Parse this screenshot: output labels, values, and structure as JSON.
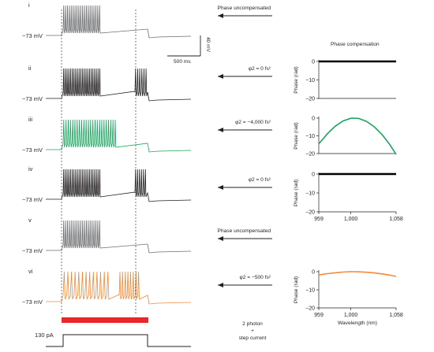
{
  "figure": {
    "title": "Phase compensation",
    "scale_bar_voltage": "40 mV",
    "scale_bar_time": "500 ms",
    "stimulus_label": "130 pA",
    "stimulus_legend_line1": "2 photon",
    "stimulus_legend_line2": "+",
    "stimulus_legend_line3": "step current"
  },
  "rows": [
    {
      "roman": "i",
      "vm": "−73 mV",
      "annotation": "Phase uncompensated",
      "color": "#6d6e71",
      "spikes1": 20,
      "spikes2": 0
    },
    {
      "roman": "ii",
      "vm": "−73 mV",
      "annotation": "φ2 = 0 fs²",
      "color": "#231f20",
      "spikes1": 22,
      "spikes2": 6
    },
    {
      "roman": "iii",
      "vm": "−73 mV",
      "annotation": "φ2 = −4,000 fs²",
      "color": "#19a55f",
      "spikes1": 24,
      "spikes2": 0
    },
    {
      "roman": "iv",
      "vm": "−73 mV",
      "annotation": "φ2 = 0 fs²",
      "color": "#231f20",
      "spikes1": 22,
      "spikes2": 6
    },
    {
      "roman": "v",
      "vm": "−73 mV",
      "annotation": "Phase uncompensated",
      "color": "#6d6e71",
      "spikes1": 20,
      "spikes2": 0
    },
    {
      "roman": "vi",
      "vm": "−73 mV",
      "annotation": "φ2 = −500 fs²",
      "color": "#f08a3c",
      "spikes1": 13,
      "spikes2": 8
    }
  ],
  "chart_data": [
    {
      "type": "line",
      "panel": "ii",
      "title": "Phase compensation",
      "ylabel": "Phase (rad)",
      "xlabel": "",
      "xlim": [
        959,
        1058
      ],
      "ylim": [
        -20,
        0
      ],
      "yticks": [
        "0",
        "−10",
        "−20"
      ],
      "series": [
        {
          "color": "#000000",
          "x": [
            959,
            980,
            1000,
            1020,
            1040,
            1058
          ],
          "y": [
            0,
            0,
            0,
            0,
            0,
            0
          ]
        }
      ]
    },
    {
      "type": "line",
      "panel": "iii",
      "ylabel": "Phase (rad)",
      "xlabel": "",
      "xlim": [
        959,
        1058
      ],
      "ylim": [
        -20,
        0
      ],
      "yticks": [
        "0",
        "−10",
        "−20"
      ],
      "series": [
        {
          "color": "#19a55f",
          "x": [
            959,
            970,
            980,
            990,
            1000,
            1004,
            1010,
            1020,
            1030,
            1040,
            1050,
            1058
          ],
          "y": [
            -14.5,
            -8.8,
            -4.6,
            -1.6,
            -0.1,
            0,
            -0.2,
            -1.8,
            -4.9,
            -9.3,
            -15.0,
            -20.5
          ]
        }
      ]
    },
    {
      "type": "line",
      "panel": "iv",
      "ylabel": "Phase (rad)",
      "xlabel": "",
      "xlim": [
        959,
        1058
      ],
      "ylim": [
        -20,
        0
      ],
      "yticks": [
        "0",
        "−10",
        "−20"
      ],
      "xticks": [
        "959",
        "1,000",
        "1,058"
      ],
      "series": [
        {
          "color": "#000000",
          "x": [
            959,
            980,
            1000,
            1020,
            1040,
            1058
          ],
          "y": [
            0,
            0,
            0,
            0,
            0,
            0
          ]
        }
      ]
    },
    {
      "type": "line",
      "panel": "vi",
      "ylabel": "Phase (rad)",
      "xlabel": "Wavelength (nm)",
      "xlim": [
        959,
        1058
      ],
      "ylim": [
        -20,
        0
      ],
      "yticks": [
        "0",
        "−10",
        "−20"
      ],
      "xticks": [
        "959",
        "1,000",
        "1,058"
      ],
      "series": [
        {
          "color": "#f08a3c",
          "x": [
            959,
            970,
            980,
            990,
            1000,
            1010,
            1020,
            1030,
            1040,
            1050,
            1058
          ],
          "y": [
            -1.8,
            -1.1,
            -0.6,
            -0.2,
            0,
            -0.1,
            -0.3,
            -0.7,
            -1.2,
            -1.9,
            -2.6
          ]
        }
      ]
    }
  ]
}
